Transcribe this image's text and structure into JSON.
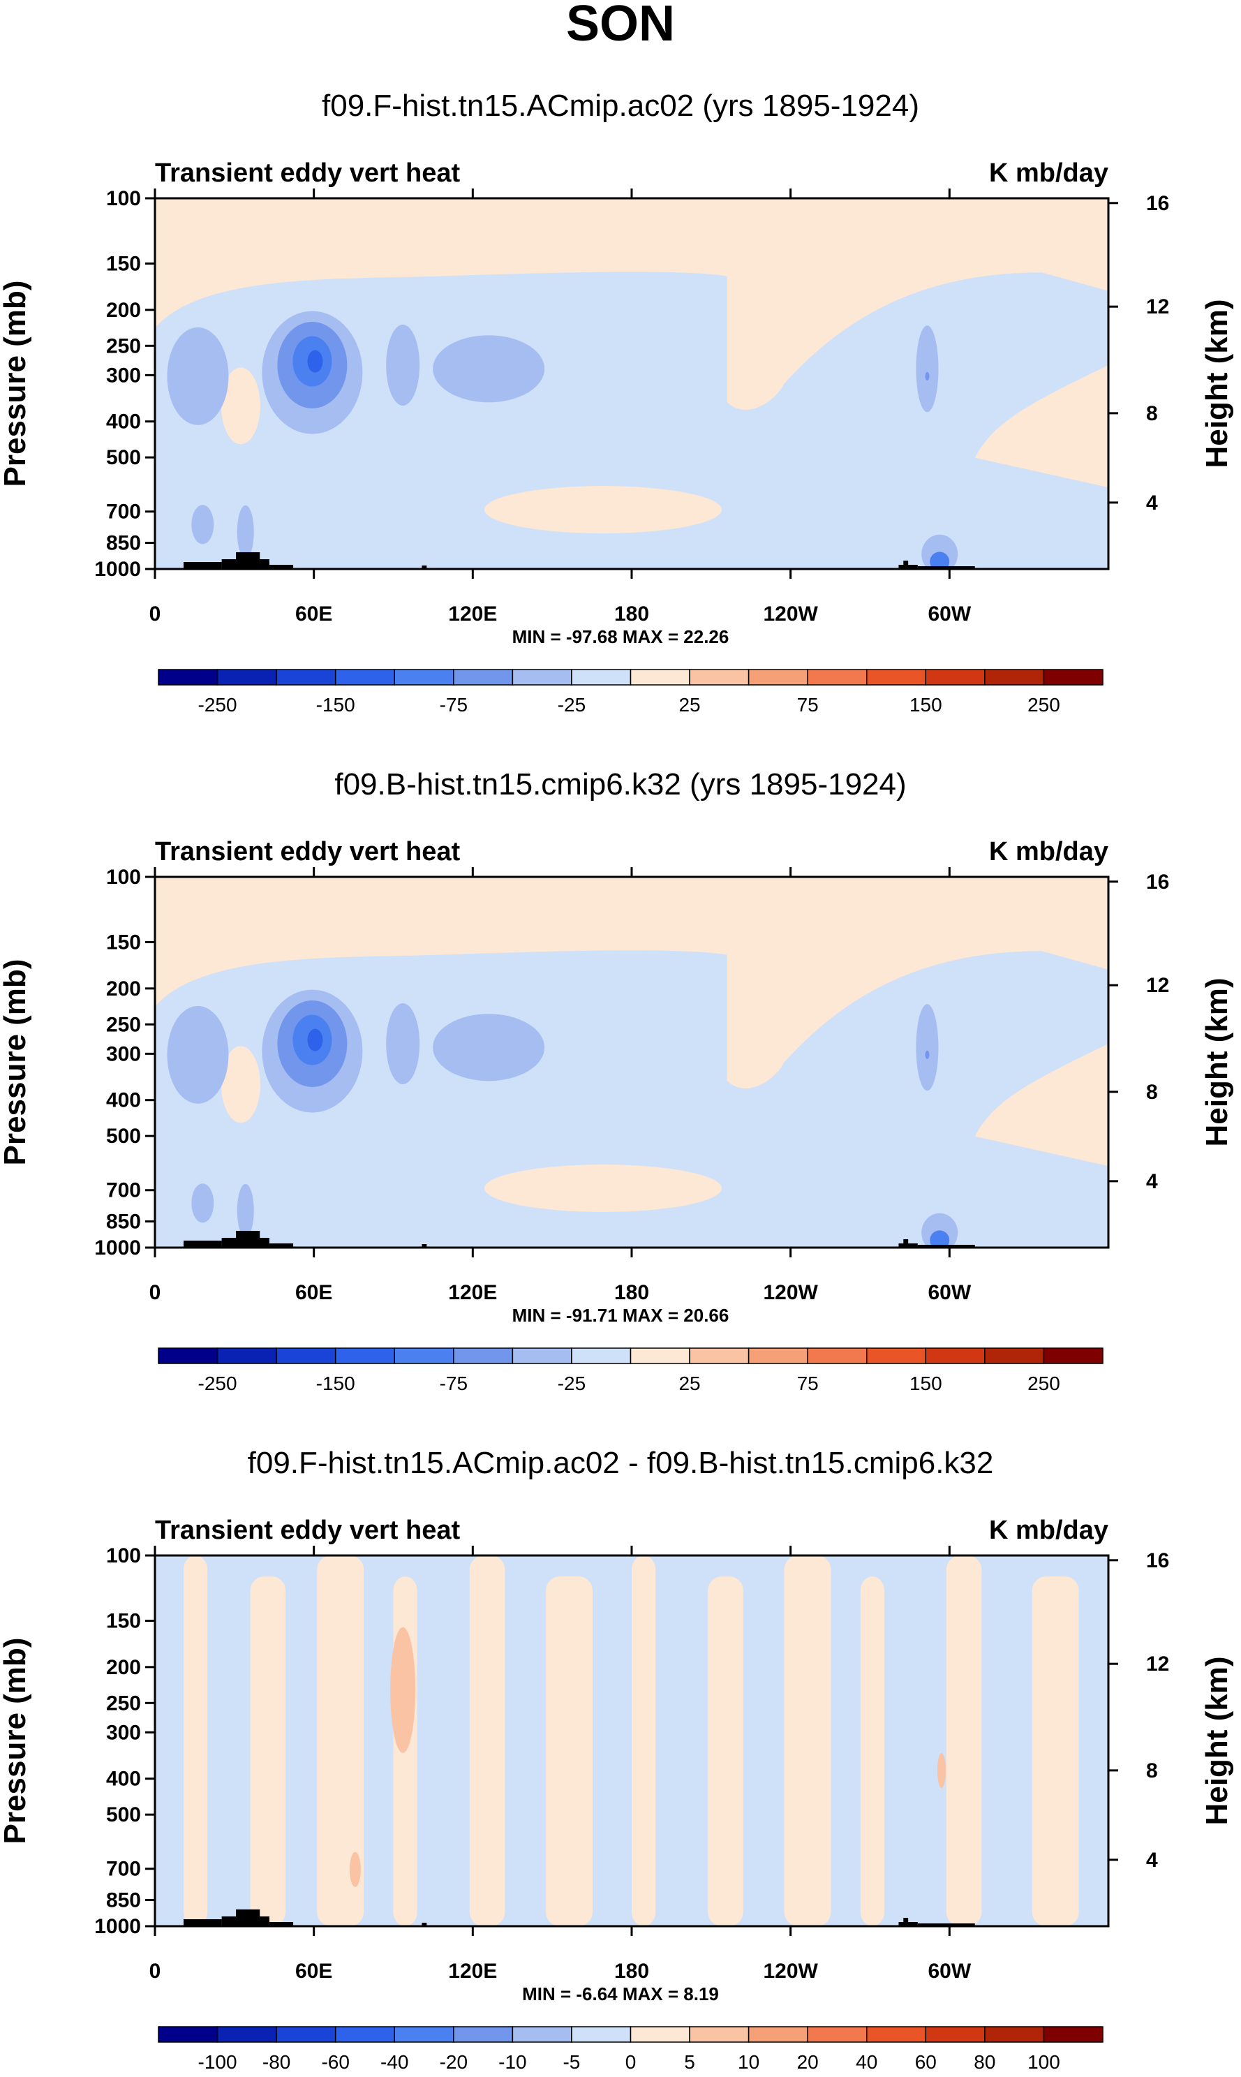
{
  "figure_title": "SON",
  "colors": {
    "background": "#ffffff",
    "ink": "#000000",
    "orography": "#000000"
  },
  "chart_data": [
    {
      "type": "contour",
      "title": "f09.F-hist.tn15.ACmip.ac02 (yrs 1895-1924)",
      "left_label": "Transient eddy vert heat",
      "right_label": "K mb/day",
      "xlabel": "",
      "ylabel": "Pressure (mb)",
      "ylabel_right": "Height (km)",
      "x_ticks": [
        "0",
        "60E",
        "120E",
        "180",
        "120W",
        "60W"
      ],
      "y_ticks": [
        "100",
        "150",
        "200",
        "250",
        "300",
        "400",
        "500",
        "700",
        "850",
        "1000"
      ],
      "y_ticks_right": [
        "16",
        "12",
        "8",
        "4"
      ],
      "stats": "MIN = -97.68   MAX =  22.26",
      "min": -97.68,
      "max": 22.26,
      "colorbar_labels": [
        "-250",
        "-150",
        "-75",
        "-25",
        "25",
        "75",
        "150",
        "250"
      ],
      "colorbar_colors": [
        "#00008b",
        "#0a22b4",
        "#1a44d8",
        "#2f62ea",
        "#4a80ef",
        "#7196ec",
        "#a6bdf1",
        "#cfe0f9",
        "#fde7d5",
        "#f9c3a4",
        "#f6a078",
        "#f2794d",
        "#ea5528",
        "#d23713",
        "#b02507",
        "#7f0000"
      ]
    },
    {
      "type": "contour",
      "title": "f09.B-hist.tn15.cmip6.k32 (yrs 1895-1924)",
      "left_label": "Transient eddy vert heat",
      "right_label": "K mb/day",
      "xlabel": "",
      "ylabel": "Pressure (mb)",
      "ylabel_right": "Height (km)",
      "x_ticks": [
        "0",
        "60E",
        "120E",
        "180",
        "120W",
        "60W"
      ],
      "y_ticks": [
        "100",
        "150",
        "200",
        "250",
        "300",
        "400",
        "500",
        "700",
        "850",
        "1000"
      ],
      "y_ticks_right": [
        "16",
        "12",
        "8",
        "4"
      ],
      "stats": "MIN = -91.71   MAX =  20.66",
      "min": -91.71,
      "max": 20.66,
      "colorbar_labels": [
        "-250",
        "-150",
        "-75",
        "-25",
        "25",
        "75",
        "150",
        "250"
      ],
      "colorbar_colors": [
        "#00008b",
        "#0a22b4",
        "#1a44d8",
        "#2f62ea",
        "#4a80ef",
        "#7196ec",
        "#a6bdf1",
        "#cfe0f9",
        "#fde7d5",
        "#f9c3a4",
        "#f6a078",
        "#f2794d",
        "#ea5528",
        "#d23713",
        "#b02507",
        "#7f0000"
      ]
    },
    {
      "type": "contour",
      "title": "f09.F-hist.tn15.ACmip.ac02 - f09.B-hist.tn15.cmip6.k32",
      "left_label": "Transient eddy vert heat",
      "right_label": "K mb/day",
      "xlabel": "",
      "ylabel": "Pressure (mb)",
      "ylabel_right": "Height (km)",
      "x_ticks": [
        "0",
        "60E",
        "120E",
        "180",
        "120W",
        "60W"
      ],
      "y_ticks": [
        "100",
        "150",
        "200",
        "250",
        "300",
        "400",
        "500",
        "700",
        "850",
        "1000"
      ],
      "y_ticks_right": [
        "16",
        "12",
        "8",
        "4"
      ],
      "stats": "MIN =  -6.64   MAX =   8.19",
      "min": -6.64,
      "max": 8.19,
      "colorbar_labels": [
        "-100",
        "-80",
        "-60",
        "-40",
        "-20",
        "-10",
        "-5",
        "0",
        "5",
        "10",
        "20",
        "40",
        "60",
        "80",
        "100"
      ],
      "colorbar_colors": [
        "#00008b",
        "#0a22b4",
        "#1a44d8",
        "#2f62ea",
        "#4a80ef",
        "#7196ec",
        "#a6bdf1",
        "#cfe0f9",
        "#fde7d5",
        "#f9c3a4",
        "#f6a078",
        "#f2794d",
        "#ea5528",
        "#d23713",
        "#b02507",
        "#7f0000"
      ]
    }
  ]
}
